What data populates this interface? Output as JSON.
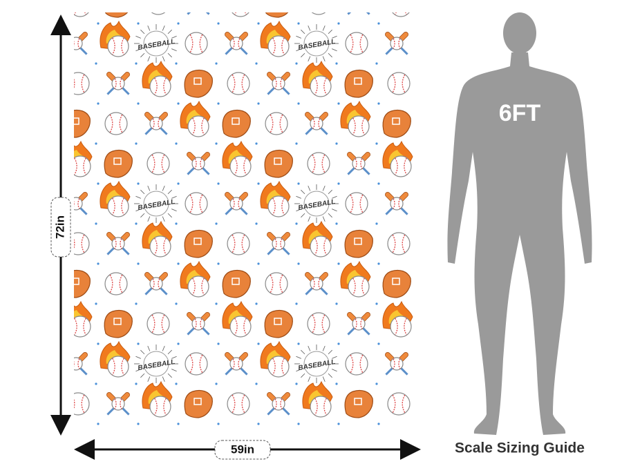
{
  "height_label": "72in",
  "width_label": "59in",
  "figure_label": "6FT",
  "guide_title": "Scale Sizing Guide",
  "pattern": {
    "badge_text": "BASEBALL"
  }
}
